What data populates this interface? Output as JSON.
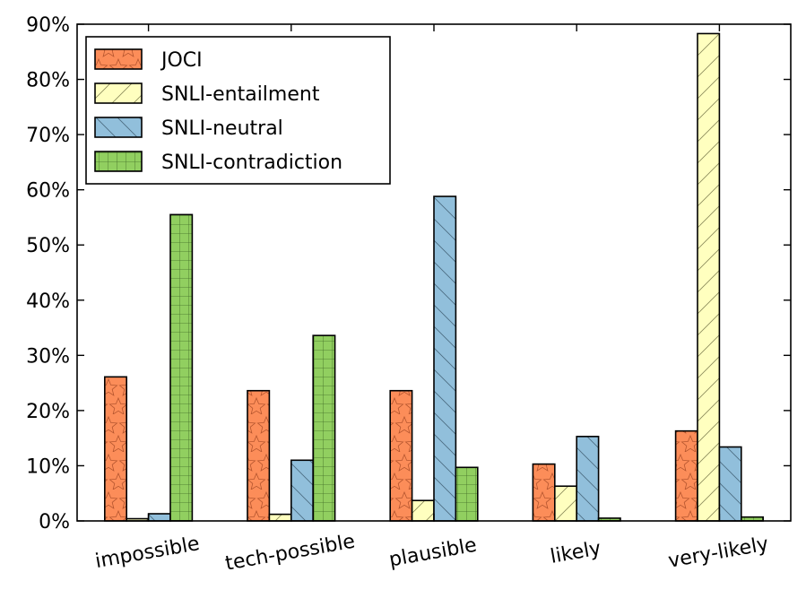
{
  "chart_data": {
    "type": "bar",
    "title": "",
    "xlabel": "",
    "ylabel": "",
    "ylim": [
      0,
      90
    ],
    "yticks": [
      0,
      10,
      20,
      30,
      40,
      50,
      60,
      70,
      80,
      90
    ],
    "ytick_labels": [
      "0%",
      "10%",
      "20%",
      "30%",
      "40%",
      "50%",
      "60%",
      "70%",
      "80%",
      "90%"
    ],
    "categories": [
      "impossible",
      "tech-possible",
      "plausible",
      "likely",
      "very-likely"
    ],
    "legend_position": "top-left",
    "grid": false,
    "series": [
      {
        "name": "JOCI",
        "color": "#fc8d59",
        "hatch": "stars",
        "values": [
          26.1,
          23.6,
          23.6,
          10.3,
          16.3
        ]
      },
      {
        "name": "SNLI-entailment",
        "color": "#ffffbf",
        "hatch": "diagonal",
        "values": [
          0.4,
          1.2,
          3.7,
          6.3,
          88.3
        ]
      },
      {
        "name": "SNLI-neutral",
        "color": "#91bfdb",
        "hatch": "backdiagonal",
        "values": [
          1.3,
          11.0,
          58.8,
          15.3,
          13.4
        ]
      },
      {
        "name": "SNLI-contradiction",
        "color": "#91cf60",
        "hatch": "grid",
        "values": [
          55.5,
          33.6,
          9.7,
          0.5,
          0.7
        ]
      }
    ]
  }
}
